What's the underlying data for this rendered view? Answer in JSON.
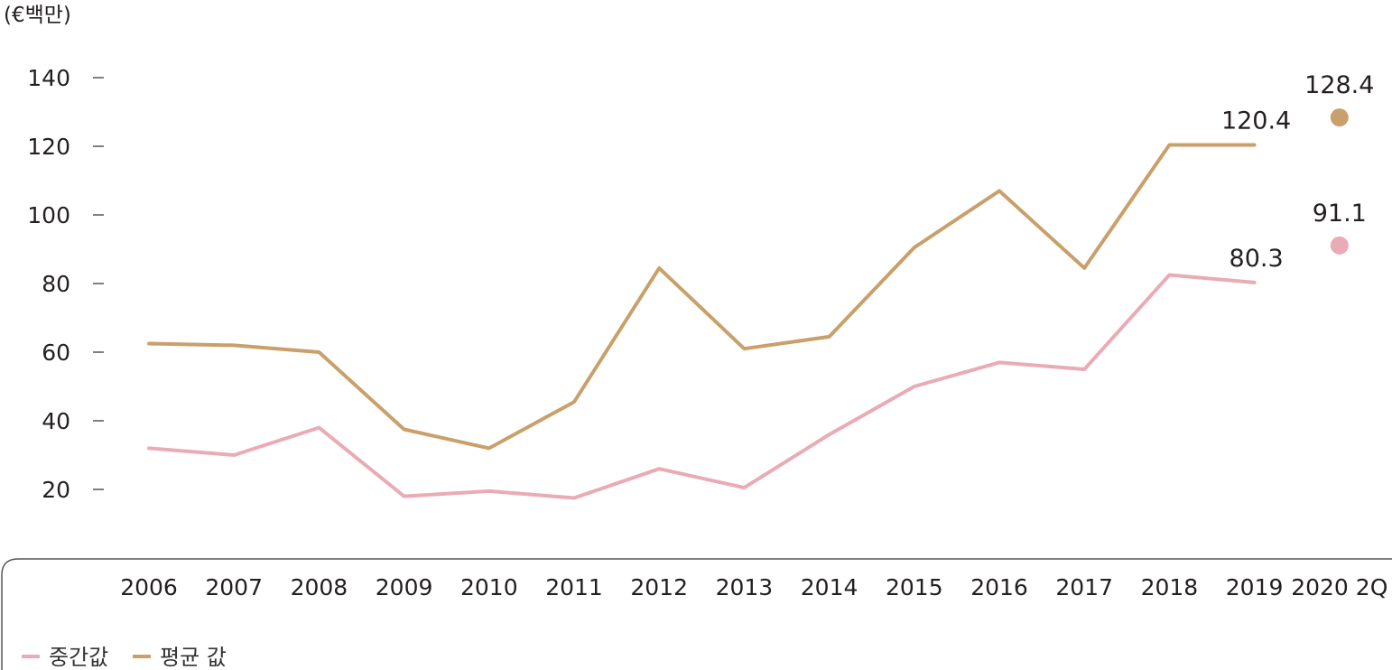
{
  "chart_data": {
    "type": "line",
    "unit_label": "(€백만)",
    "categories": [
      "2006",
      "2007",
      "2008",
      "2009",
      "2010",
      "2011",
      "2012",
      "2013",
      "2014",
      "2015",
      "2016",
      "2017",
      "2018",
      "2019",
      "2020 2Q"
    ],
    "yticks": [
      20,
      40,
      60,
      80,
      100,
      120,
      140
    ],
    "ylim": [
      5,
      150
    ],
    "grid": false,
    "legend_position": "bottom-left",
    "series": [
      {
        "name": "중간값",
        "color": "#e9abb5",
        "values": [
          32,
          30,
          38,
          18,
          19.5,
          17.5,
          26,
          20.5,
          36,
          50,
          57,
          55,
          82.5,
          80.3,
          null
        ],
        "point": {
          "category": "2020 2Q",
          "value": 91.1,
          "label": "91.1"
        },
        "end_label": "80.3"
      },
      {
        "name": "평균 값",
        "color": "#c9a06a",
        "values": [
          62.5,
          62,
          60,
          37.5,
          32,
          45.5,
          84.5,
          61,
          64.5,
          90.5,
          107,
          84.5,
          120.4,
          120.4,
          null
        ],
        "point": {
          "category": "2020 2Q",
          "value": 128.4,
          "label": "128.4"
        },
        "end_label": "120.4"
      }
    ]
  }
}
